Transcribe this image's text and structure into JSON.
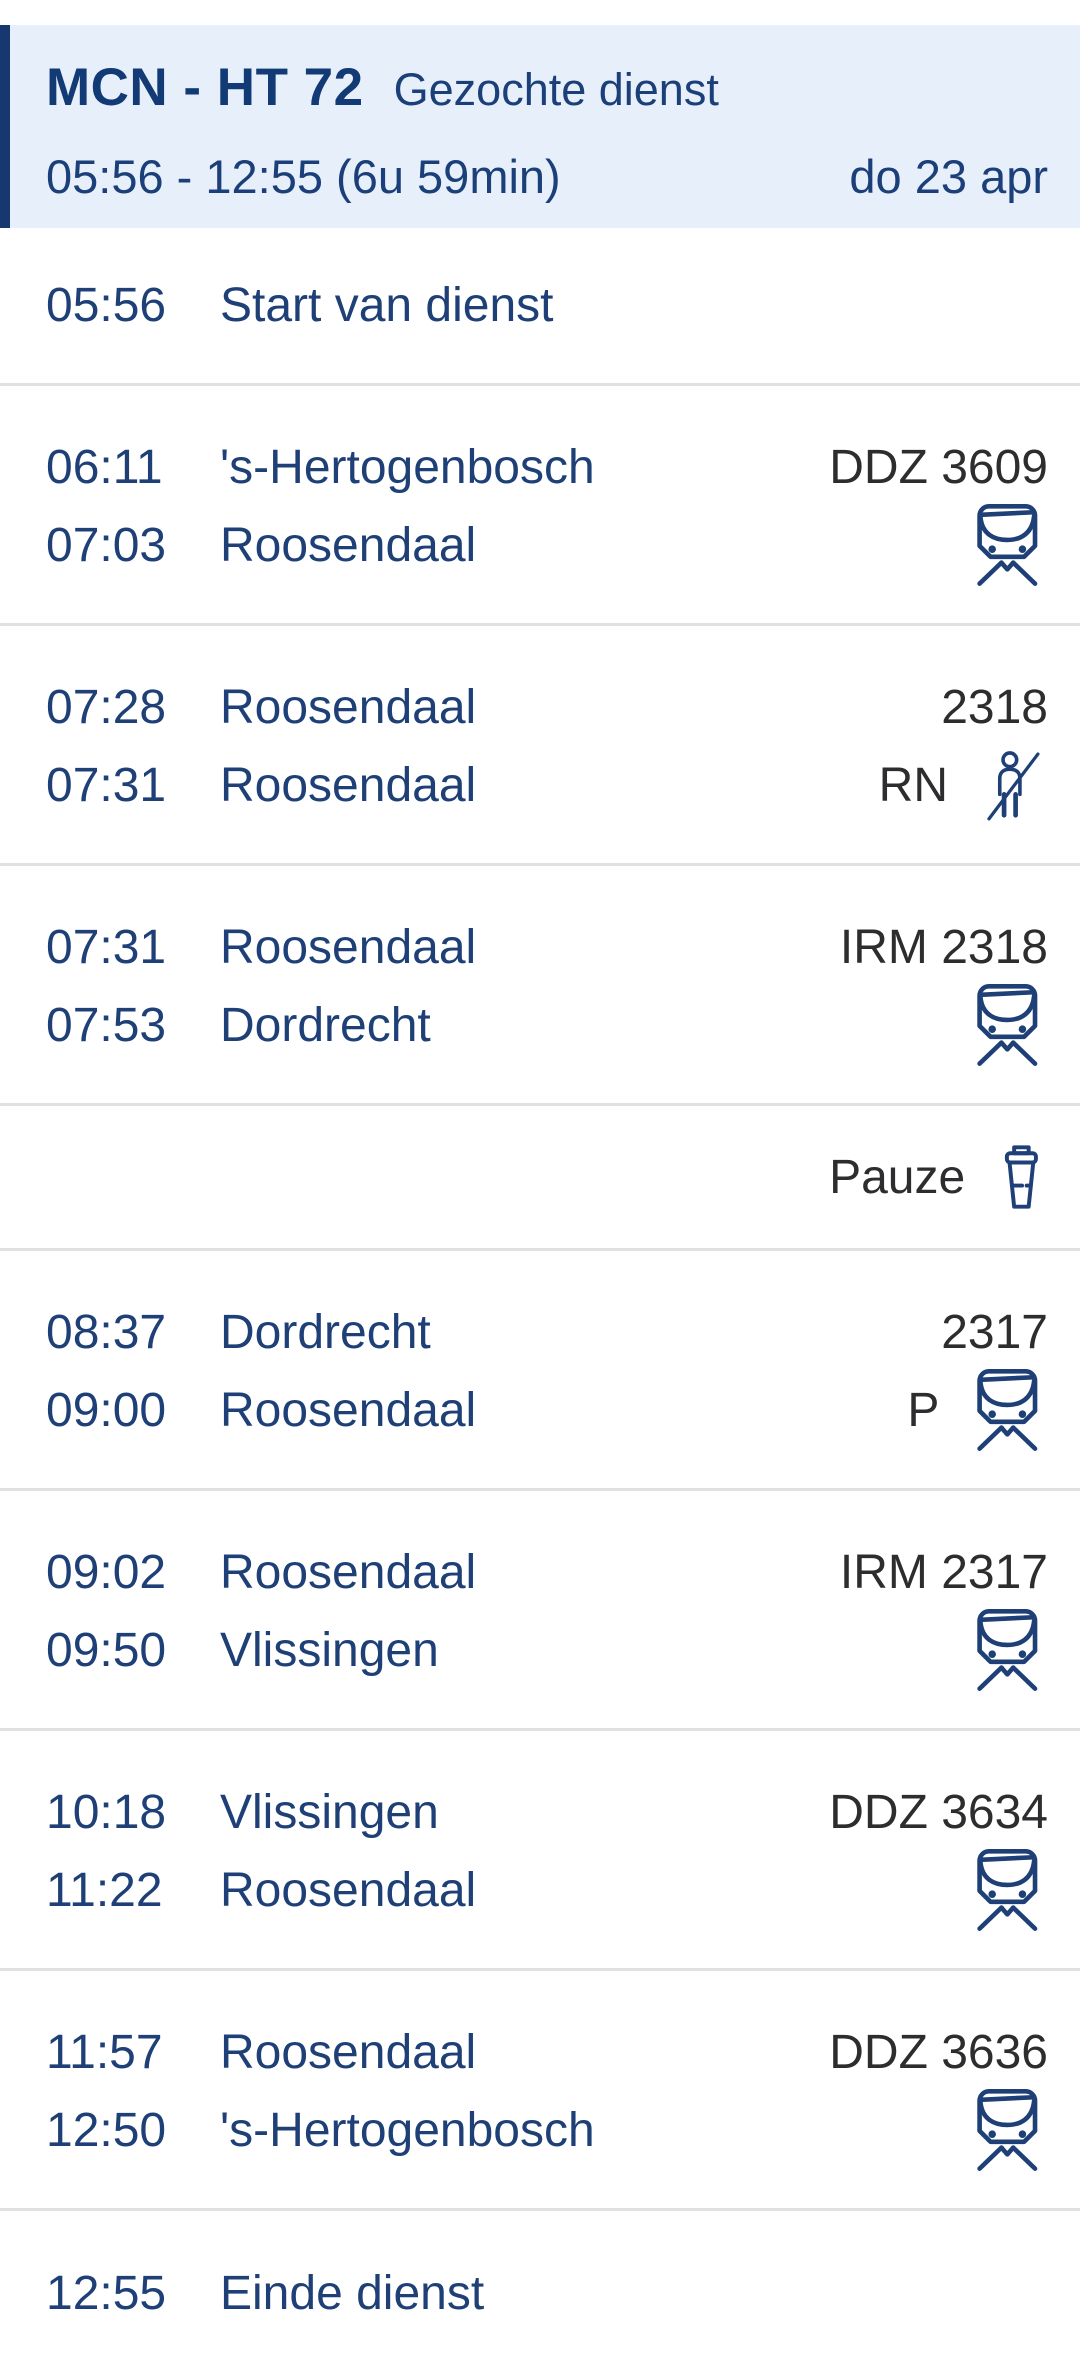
{
  "header": {
    "duty_code": "MCN - HT 72",
    "duty_type": "Gezochte dienst",
    "time_range": "05:56 - 12:55 (6u 59min)",
    "date": "do 23 apr"
  },
  "colors": {
    "navy_text": "#1e4077",
    "header_title": "#123a74",
    "header_background": "#e7effb",
    "accent_bar": "#16386e",
    "dark_gray_text": "#2d2d30",
    "divider": "#e1e1e4",
    "icon_navy": "#1e4077"
  },
  "icons": {
    "train": "train-icon",
    "no_passengers": "no-passengers-icon",
    "coffee": "coffee-cup-icon"
  },
  "rows": [
    {
      "type": "event",
      "time": "05:56",
      "label": "Start van dienst"
    },
    {
      "type": "trip",
      "departure": {
        "time": "06:11",
        "station": "'s-Hertogenbosch"
      },
      "arrival": {
        "time": "07:03",
        "station": "Roosendaal"
      },
      "train": "DDZ 3609",
      "badge": "",
      "icon": "train"
    },
    {
      "type": "trip",
      "departure": {
        "time": "07:28",
        "station": "Roosendaal"
      },
      "arrival": {
        "time": "07:31",
        "station": "Roosendaal"
      },
      "train": "2318",
      "badge": "RN",
      "icon": "no_passengers"
    },
    {
      "type": "trip",
      "departure": {
        "time": "07:31",
        "station": "Roosendaal"
      },
      "arrival": {
        "time": "07:53",
        "station": "Dordrecht"
      },
      "train": "IRM 2318",
      "badge": "",
      "icon": "train"
    },
    {
      "type": "pause",
      "label": "Pauze",
      "icon": "coffee"
    },
    {
      "type": "trip",
      "departure": {
        "time": "08:37",
        "station": "Dordrecht"
      },
      "arrival": {
        "time": "09:00",
        "station": "Roosendaal"
      },
      "train": "2317",
      "badge": "P",
      "icon": "train"
    },
    {
      "type": "trip",
      "departure": {
        "time": "09:02",
        "station": "Roosendaal"
      },
      "arrival": {
        "time": "09:50",
        "station": "Vlissingen"
      },
      "train": "IRM 2317",
      "badge": "",
      "icon": "train"
    },
    {
      "type": "trip",
      "departure": {
        "time": "10:18",
        "station": "Vlissingen"
      },
      "arrival": {
        "time": "11:22",
        "station": "Roosendaal"
      },
      "train": "DDZ 3634",
      "badge": "",
      "icon": "train"
    },
    {
      "type": "trip",
      "departure": {
        "time": "11:57",
        "station": "Roosendaal"
      },
      "arrival": {
        "time": "12:50",
        "station": "'s-Hertogenbosch"
      },
      "train": "DDZ 3636",
      "badge": "",
      "icon": "train"
    },
    {
      "type": "event",
      "time": "12:55",
      "label": "Einde dienst",
      "last": true
    }
  ]
}
